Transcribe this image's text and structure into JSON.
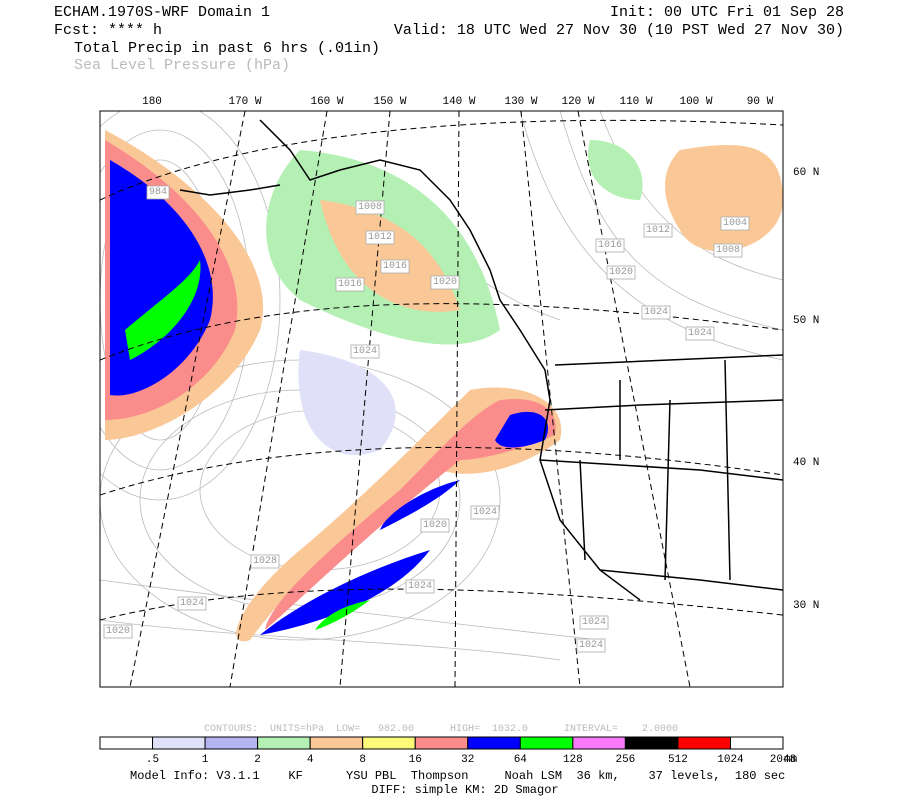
{
  "header": {
    "model": "ECHAM.1970S-WRF Domain 1",
    "init": "Init: 00 UTC Fri 01 Sep 28",
    "forecast": "Fcst: **** h",
    "valid": "Valid: 18 UTC Wed 27 Nov 30 (10 PST Wed 27 Nov 30)",
    "field1": "Total Precip in past 6 hrs (.01in)",
    "field2": "Sea Level Pressure (hPa)"
  },
  "map": {
    "longitude_labels": [
      "180",
      "170 W",
      "160 W",
      "150 W",
      "140 W",
      "130 W",
      "120 W",
      "110 W",
      "100 W",
      "90 W"
    ],
    "latitude_labels": [
      "60 N",
      "50 N",
      "40 N",
      "30 N"
    ],
    "contour_labels": [
      "984",
      "1008",
      "1012",
      "1016",
      "1020",
      "1016",
      "1024",
      "1016",
      "1020",
      "1024",
      "1024",
      "1012",
      "1004",
      "1008",
      "1028",
      "1024",
      "1020",
      "1024",
      "1024",
      "1020",
      "1024",
      "1024"
    ]
  },
  "colorbar": {
    "contour_info": "CONTOURS:  UNITS=hPa  LOW=   982.00      HIGH=  1032.0      INTERVAL=    2.0000",
    "colors": [
      "#ffffff",
      "#e0e0f8",
      "#b4b4f0",
      "#b4f0b4",
      "#fac896",
      "#fafa78",
      "#fa8c8c",
      "#0000ff",
      "#00ff00",
      "#fa78fa",
      "#000000",
      "#ff0000",
      "#ffffff"
    ],
    "labels": [
      ".5",
      "1",
      "2",
      "4",
      "8",
      "16",
      "32",
      "64",
      "128",
      "256",
      "512",
      "1024",
      "2048"
    ],
    "unit": "mm"
  },
  "footer": {
    "line1": "Model Info: V3.1.1    KF      YSU PBL  Thompson     Noah LSM  36 km,    37 levels,  180 sec",
    "line2": "DIFF: simple KM: 2D Smagor"
  }
}
